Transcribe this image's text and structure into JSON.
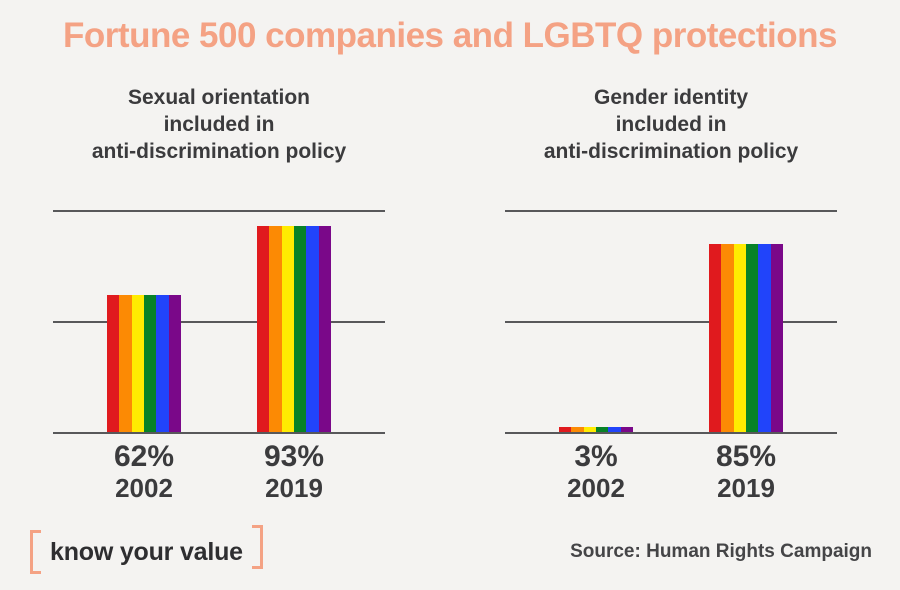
{
  "title": "Fortune 500 companies and LGBTQ protections",
  "colors": {
    "background": "#F4F3F1",
    "accent_salmon": "#F4A284",
    "text_dark": "#3B3B3D",
    "gridline": "#58585A",
    "logo_text": "#2E2E30"
  },
  "pride_stripes": [
    "#E01A1E",
    "#FC8A04",
    "#FFEC01",
    "#078228",
    "#2144FA",
    "#7A0889"
  ],
  "chart_data": [
    {
      "type": "bar",
      "title": "Sexual orientation\nincluded in\nanti-discrimination policy",
      "categories": [
        "2002",
        "2019"
      ],
      "values": [
        62,
        93
      ],
      "value_labels": [
        "62%",
        "93%"
      ],
      "xlabel": "",
      "ylabel": "",
      "ylim": [
        0,
        100
      ],
      "gridlines": [
        0,
        50,
        100
      ],
      "grid": "on",
      "legend": "none",
      "bar_style": "rainbow-pride-stripes"
    },
    {
      "type": "bar",
      "title": "Gender identity\nincluded in\nanti-discrimination policy",
      "categories": [
        "2002",
        "2019"
      ],
      "values": [
        3,
        85
      ],
      "value_labels": [
        "3%",
        "85%"
      ],
      "xlabel": "",
      "ylabel": "",
      "ylim": [
        0,
        100
      ],
      "gridlines": [
        0,
        50,
        100
      ],
      "grid": "on",
      "legend": "none",
      "bar_style": "rainbow-pride-stripes"
    }
  ],
  "footer": {
    "logo_text": "know your value",
    "source": "Source: Human Rights Campaign"
  }
}
